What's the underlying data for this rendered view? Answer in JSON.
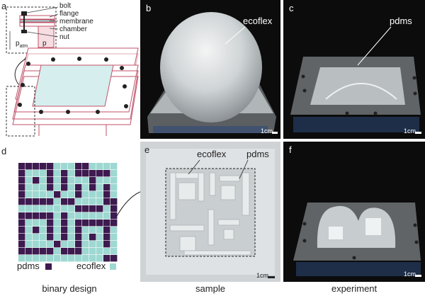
{
  "panel_letters": {
    "a": "a",
    "b": "b",
    "c": "c",
    "d": "d",
    "e": "e",
    "f": "f"
  },
  "inset_labels": {
    "bolt": "bolt",
    "flange": "flange",
    "membrane": "membrane",
    "chamber": "chamber",
    "nut": "nut",
    "p_atm_base": "p",
    "p_atm_sub": "atm",
    "p": "p"
  },
  "photo_labels": {
    "b": "ecoflex",
    "c": "pdms",
    "e_left": "ecoflex",
    "e_right": "pdms"
  },
  "scale": "1cm",
  "legend": {
    "pdms": "pdms",
    "ecoflex": "ecoflex"
  },
  "captions": {
    "d": "binary design",
    "e": "sample",
    "f": "experiment"
  },
  "colors": {
    "pdms": "#3d1a4f",
    "ecoflex": "#9ed8d2",
    "frame": "#c0526a"
  },
  "binary_grid": [
    "11111000110000",
    "10001010111110",
    "10101010001000",
    "10001010101010",
    "10000100100010",
    "11111011000011",
    "00000000111101",
    "11111010000001",
    "10001010111111",
    "10101010100010",
    "10001010101010",
    "10000100100010",
    "11111011100000",
    "00000000000011"
  ]
}
